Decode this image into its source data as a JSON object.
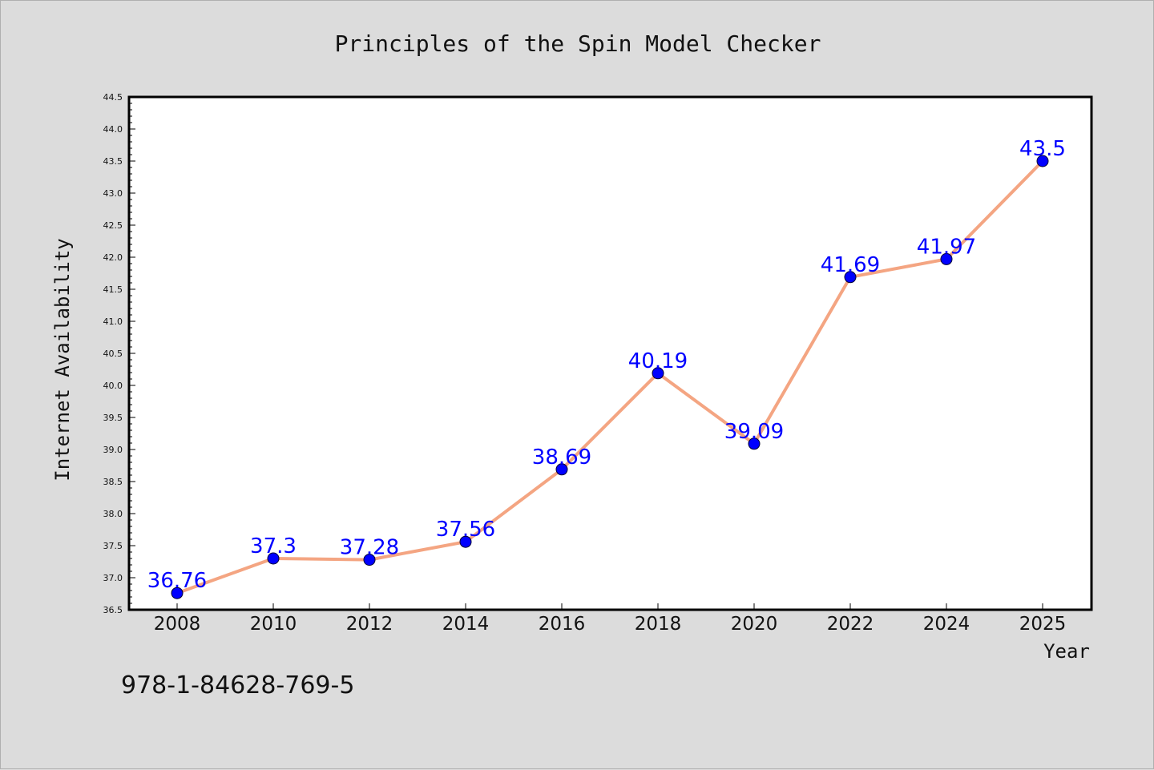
{
  "chart_data": {
    "type": "line",
    "title": "Principles of the Spin Model Checker",
    "xlabel": "Year",
    "ylabel": "Internet Availability",
    "x": [
      "2008",
      "2010",
      "2012",
      "2014",
      "2016",
      "2018",
      "2020",
      "2022",
      "2024",
      "2025"
    ],
    "series": [
      {
        "values": [
          36.76,
          37.3,
          37.28,
          37.56,
          38.69,
          40.19,
          39.09,
          41.69,
          41.97,
          43.5
        ],
        "data_labels": [
          "36.76",
          "37.3",
          "37.28",
          "37.56",
          "38.69",
          "40.19",
          "39.09",
          "41.69",
          "41.97",
          "43.5"
        ],
        "line_color": "#f4a582",
        "marker_color": "#0000ff"
      }
    ],
    "ylim": [
      36.5,
      44.5
    ],
    "yticks": [
      "36.5",
      "37.0",
      "37.5",
      "38.0",
      "38.5",
      "39.0",
      "39.5",
      "40.0",
      "40.5",
      "41.0",
      "41.5",
      "42.0",
      "42.5",
      "43.0",
      "43.5",
      "44.0",
      "44.5"
    ],
    "grid": false,
    "legend": "none"
  },
  "footer": {
    "isbn": "978-1-84628-769-5"
  },
  "colors": {
    "background": "#dcdcdc",
    "plot_background": "#ffffff",
    "data_label": "#0000ff"
  }
}
